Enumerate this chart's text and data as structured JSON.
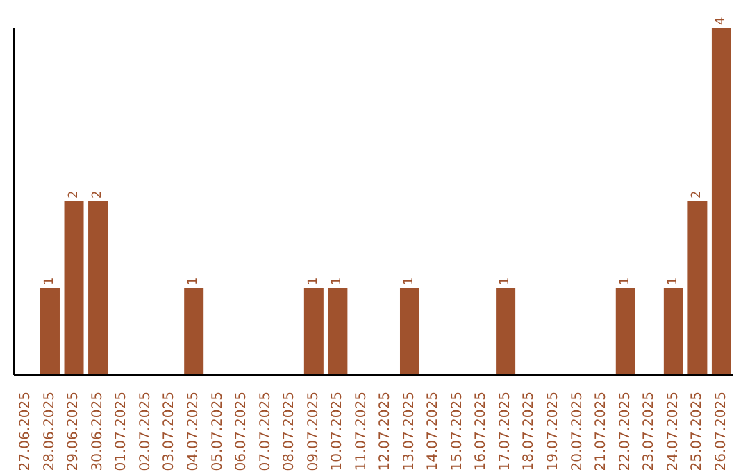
{
  "chart_data": {
    "type": "bar",
    "categories": [
      "27.06.2025",
      "28.06.2025",
      "29.06.2025",
      "30.06.2025",
      "01.07.2025",
      "02.07.2025",
      "03.07.2025",
      "04.07.2025",
      "05.07.2025",
      "06.07.2025",
      "07.07.2025",
      "08.07.2025",
      "09.07.2025",
      "10.07.2025",
      "11.07.2025",
      "12.07.2025",
      "13.07.2025",
      "14.07.2025",
      "15.07.2025",
      "16.07.2025",
      "17.07.2025",
      "18.07.2025",
      "19.07.2025",
      "20.07.2025",
      "21.07.2025",
      "22.07.2025",
      "23.07.2025",
      "24.07.2025",
      "25.07.2025",
      "26.07.2025"
    ],
    "values": [
      0,
      1,
      2,
      2,
      0,
      0,
      0,
      1,
      0,
      0,
      0,
      0,
      1,
      1,
      0,
      0,
      1,
      0,
      0,
      0,
      1,
      0,
      0,
      0,
      0,
      1,
      0,
      1,
      2,
      4
    ],
    "value_labels": [
      null,
      "1",
      "2",
      "2",
      null,
      null,
      null,
      "1",
      null,
      null,
      null,
      null,
      "1",
      "1",
      null,
      null,
      "1",
      null,
      null,
      null,
      "1",
      null,
      null,
      null,
      null,
      "1",
      null,
      "1",
      "2",
      "4"
    ],
    "color": "#a0522d",
    "grid": false,
    "legend": false
  }
}
